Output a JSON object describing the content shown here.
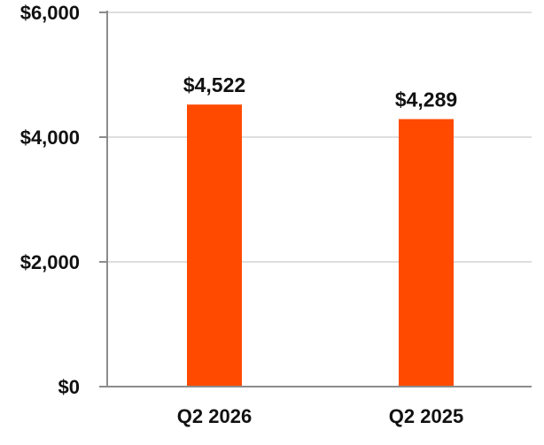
{
  "chart_data": {
    "type": "bar",
    "title": "",
    "xlabel": "",
    "ylabel": "",
    "categories": [
      "Q2 2026",
      "Q2 2025"
    ],
    "values": [
      4522,
      4289
    ],
    "data_labels": [
      "$4,522",
      "$4,289"
    ],
    "ylim": [
      0,
      6000
    ],
    "y_ticks": [
      0,
      2000,
      4000,
      6000
    ],
    "y_tick_labels": [
      "$0",
      "$2,000",
      "$4,000",
      "$6,000"
    ],
    "grid": true,
    "legend": "none",
    "colors": {
      "bar": "#ff4a00",
      "grid": "#dedede",
      "axis": "#8c8c8c",
      "text": "#111111"
    }
  }
}
